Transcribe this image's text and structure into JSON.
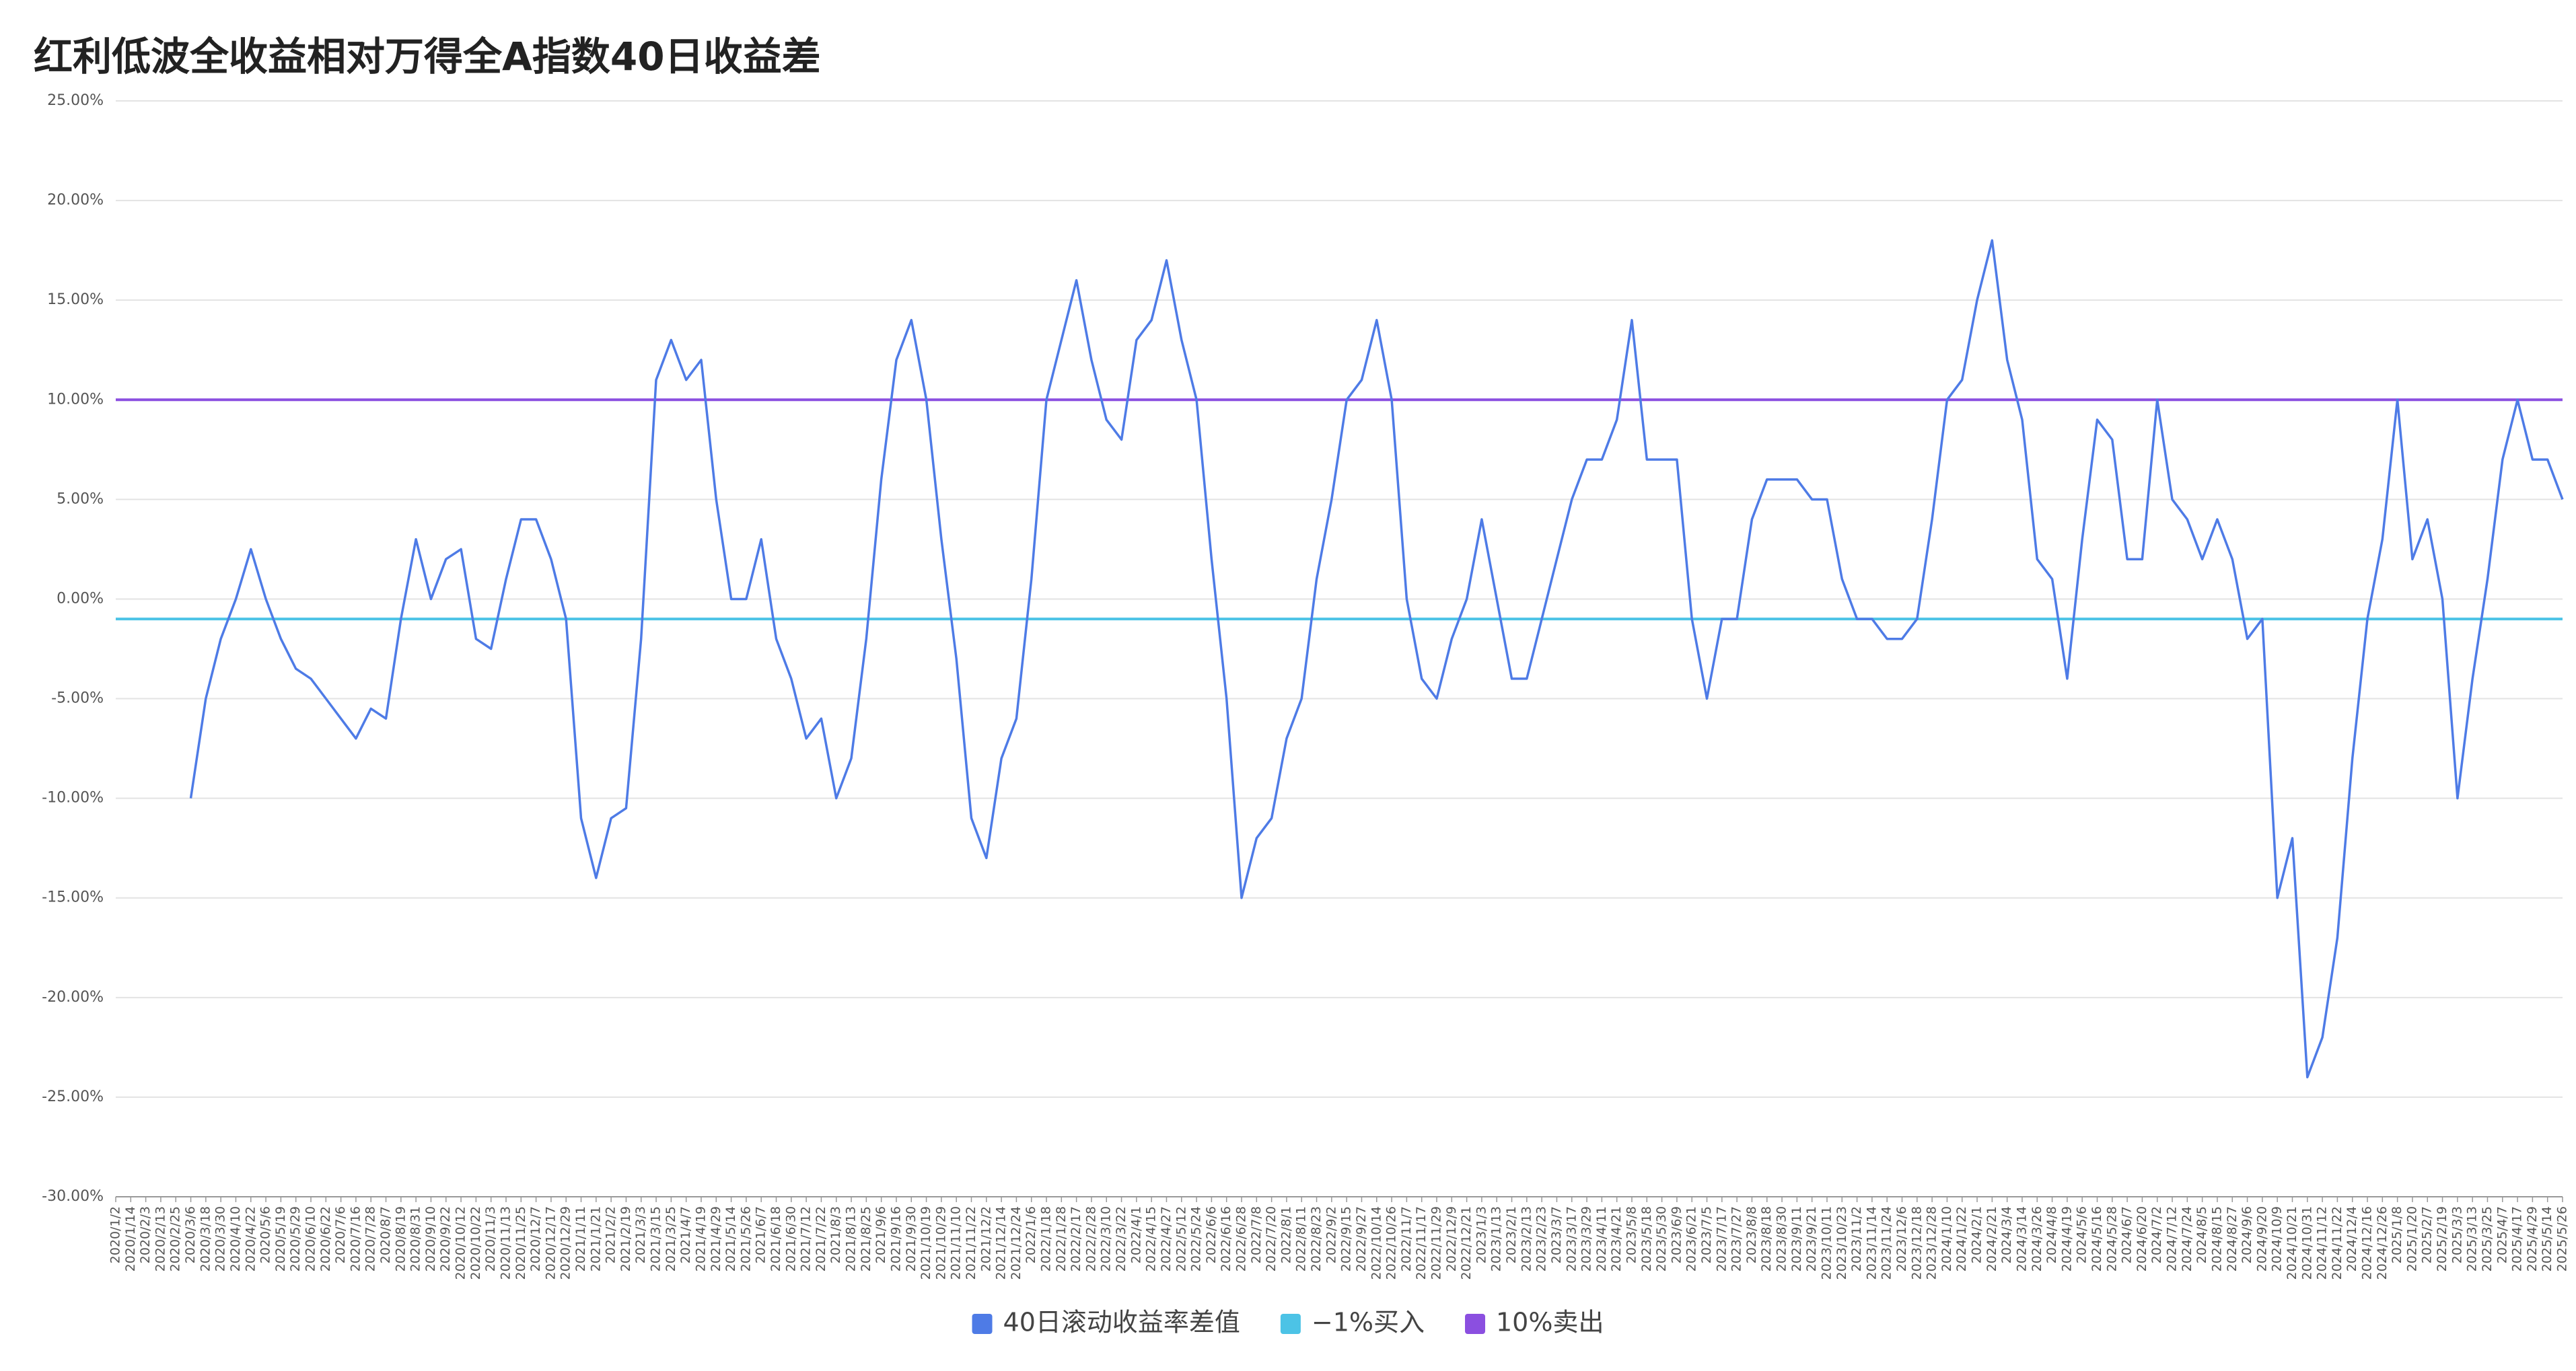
{
  "chart_data": {
    "type": "line",
    "title": "红利低波全收益相对万得全A指数40日收益差",
    "categories": [
      "2020/1/2",
      "2020/1/14",
      "2020/2/3",
      "2020/2/13",
      "2020/2/25",
      "2020/3/6",
      "2020/3/18",
      "2020/3/30",
      "2020/4/10",
      "2020/4/22",
      "2020/5/6",
      "2020/5/19",
      "2020/5/29",
      "2020/6/10",
      "2020/6/22",
      "2020/7/6",
      "2020/7/16",
      "2020/7/28",
      "2020/8/7",
      "2020/8/19",
      "2020/8/31",
      "2020/9/10",
      "2020/9/22",
      "2020/10/12",
      "2020/10/22",
      "2020/11/3",
      "2020/11/13",
      "2020/11/25",
      "2020/12/7",
      "2020/12/17",
      "2020/12/29",
      "2021/1/11",
      "2021/1/21",
      "2021/2/2",
      "2021/2/19",
      "2021/3/3",
      "2021/3/15",
      "2021/3/25",
      "2021/4/7",
      "2021/4/19",
      "2021/4/29",
      "2021/5/14",
      "2021/5/26",
      "2021/6/7",
      "2021/6/18",
      "2021/6/30",
      "2021/7/12",
      "2021/7/22",
      "2021/8/3",
      "2021/8/13",
      "2021/8/25",
      "2021/9/6",
      "2021/9/16",
      "2021/9/30",
      "2021/10/19",
      "2021/10/29",
      "2021/11/10",
      "2021/11/22",
      "2021/12/2",
      "2021/12/14",
      "2021/12/24",
      "2022/1/6",
      "2022/1/18",
      "2022/1/28",
      "2022/2/17",
      "2022/2/28",
      "2022/3/10",
      "2022/3/22",
      "2022/4/1",
      "2022/4/15",
      "2022/4/27",
      "2022/5/12",
      "2022/5/24",
      "2022/6/6",
      "2022/6/16",
      "2022/6/28",
      "2022/7/8",
      "2022/7/20",
      "2022/8/1",
      "2022/8/11",
      "2022/8/23",
      "2022/9/2",
      "2022/9/15",
      "2022/9/27",
      "2022/10/14",
      "2022/10/26",
      "2022/11/7",
      "2022/11/17",
      "2022/11/29",
      "2022/12/9",
      "2022/12/21",
      "2023/1/3",
      "2023/1/13",
      "2023/2/1",
      "2023/2/13",
      "2023/2/23",
      "2023/3/7",
      "2023/3/17",
      "2023/3/29",
      "2023/4/11",
      "2023/4/21",
      "2023/5/8",
      "2023/5/18",
      "2023/5/30",
      "2023/6/9",
      "2023/6/21",
      "2023/7/5",
      "2023/7/17",
      "2023/7/27",
      "2023/8/8",
      "2023/8/18",
      "2023/8/30",
      "2023/9/11",
      "2023/9/21",
      "2023/10/11",
      "2023/10/23",
      "2023/11/2",
      "2023/11/14",
      "2023/11/24",
      "2023/12/6",
      "2023/12/18",
      "2023/12/28",
      "2024/1/10",
      "2024/1/22",
      "2024/2/1",
      "2024/2/21",
      "2024/3/4",
      "2024/3/14",
      "2024/3/26",
      "2024/4/8",
      "2024/4/19",
      "2024/5/6",
      "2024/5/16",
      "2024/5/28",
      "2024/6/7",
      "2024/6/20",
      "2024/7/2",
      "2024/7/12",
      "2024/7/24",
      "2024/8/5",
      "2024/8/15",
      "2024/8/27",
      "2024/9/6",
      "2024/9/20",
      "2024/10/9",
      "2024/10/21",
      "2024/10/31",
      "2024/11/12",
      "2024/11/22",
      "2024/12/4",
      "2024/12/16",
      "2024/12/26",
      "2025/1/8",
      "2025/1/20",
      "2025/2/7",
      "2025/2/19",
      "2025/3/3",
      "2025/3/13",
      "2025/3/25",
      "2025/4/7",
      "2025/4/17",
      "2025/4/29",
      "2025/5/14",
      "2025/5/26"
    ],
    "series": [
      {
        "name": "40日滚动收益率差值",
        "color": "#4e7be6",
        "values": [
          null,
          null,
          null,
          null,
          null,
          -10,
          -5,
          -2,
          0,
          2.5,
          0,
          -2,
          -3.5,
          -4,
          -5,
          -6,
          -7,
          -5.5,
          -6,
          -1,
          3,
          0,
          2,
          2.5,
          -2,
          -2.5,
          1,
          4,
          4,
          2,
          -1,
          -11,
          -14,
          -11,
          -10.5,
          -2,
          11,
          13,
          11,
          12,
          5,
          0,
          0,
          3,
          -2,
          -4,
          -7,
          -6,
          -10,
          -8,
          -2,
          6,
          12,
          14,
          10,
          3,
          -3,
          -11,
          -13,
          -8,
          -6,
          1,
          10,
          13,
          16,
          12,
          9,
          8,
          13,
          14,
          17,
          13,
          10,
          2,
          -5,
          -15,
          -12,
          -11,
          -7,
          -5,
          1,
          5,
          10,
          11,
          14,
          10,
          0,
          -4,
          -5,
          -2,
          0,
          4,
          0,
          -4,
          -4,
          -1,
          2,
          5,
          7,
          7,
          9,
          14,
          7,
          7,
          7,
          -1,
          -5,
          -1,
          -1,
          4,
          6,
          6,
          6,
          5,
          5,
          1,
          -1,
          -1,
          -2,
          -2,
          -1,
          4,
          10,
          11,
          15,
          18,
          12,
          9,
          2,
          1,
          -4,
          3,
          9,
          8,
          2,
          2,
          10,
          5,
          4,
          2,
          4,
          2,
          -2,
          -1,
          -15,
          -12,
          -24,
          -22,
          -17,
          -8,
          -1,
          3,
          10,
          2,
          4,
          0,
          -10,
          -4,
          1,
          7,
          10,
          7,
          7,
          5
        ]
      }
    ],
    "reference_lines": [
      {
        "name": "−1%买入",
        "color": "#4cc3e6",
        "value": -1
      },
      {
        "name": "10%卖出",
        "color": "#8b4fe0",
        "value": 10
      }
    ],
    "ylim": [
      -30,
      25
    ],
    "yticks": [
      {
        "value": -30,
        "label": "-30.00%"
      },
      {
        "value": -25,
        "label": "-25.00%"
      },
      {
        "value": -20,
        "label": "-20.00%"
      },
      {
        "value": -15,
        "label": "-15.00%"
      },
      {
        "value": -10,
        "label": "-10.00%"
      },
      {
        "value": -5,
        "label": "-5.00%"
      },
      {
        "value": 0,
        "label": "0.00%"
      },
      {
        "value": 5,
        "label": "5.00%"
      },
      {
        "value": 10,
        "label": "10.00%"
      },
      {
        "value": 15,
        "label": "15.00%"
      },
      {
        "value": 20,
        "label": "20.00%"
      },
      {
        "value": 25,
        "label": "25.00%"
      }
    ],
    "grid": true,
    "legend": "bottom"
  }
}
